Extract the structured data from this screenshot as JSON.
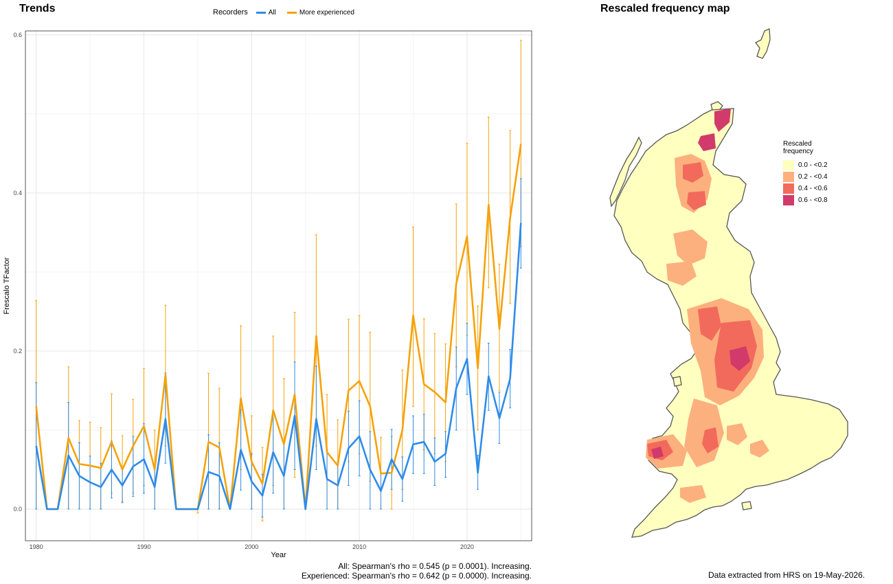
{
  "trends_title": "Trends",
  "map_title": "Rescaled frequency map",
  "legend": {
    "title": "Recorders",
    "items": [
      {
        "label": "All",
        "color": "#2e8be8"
      },
      {
        "label": "More experienced",
        "color": "#f5a20a"
      }
    ]
  },
  "stats": {
    "line1": "All: Spearman's rho = 0.545 (p = 0.0001). Increasing.",
    "line2": "Experienced: Spearman's rho = 0.642 (p = 0.0000). Increasing."
  },
  "footer": "Data extracted from HRS on 19-May-2026.",
  "map_legend": {
    "title": "Rescaled frequency",
    "items": [
      {
        "label": "0.0 - <0.2",
        "color": "#ffffc0"
      },
      {
        "label": "0.2 - <0.4",
        "color": "#fcb07e"
      },
      {
        "label": "0.4 - <0.6",
        "color": "#f26a5b"
      },
      {
        "label": "0.6 - <0.8",
        "color": "#d13a6a"
      }
    ]
  },
  "chart_data": {
    "type": "line",
    "xlabel": "Year",
    "ylabel": "Frescalo TFactor",
    "xlim": [
      1979,
      2026
    ],
    "ylim": [
      -0.04,
      0.605
    ],
    "xticks": [
      1980,
      1990,
      2000,
      2010,
      2020
    ],
    "yticks": [
      0.0,
      0.2,
      0.4,
      0.6
    ],
    "grid": true,
    "legend_position": "top",
    "x": [
      1980,
      1981,
      1982,
      1983,
      1984,
      1985,
      1986,
      1987,
      1988,
      1989,
      1990,
      1991,
      1992,
      1993,
      1994,
      1995,
      1996,
      1997,
      1998,
      1999,
      2000,
      2001,
      2002,
      2003,
      2004,
      2005,
      2006,
      2007,
      2008,
      2009,
      2010,
      2011,
      2012,
      2013,
      2014,
      2015,
      2016,
      2017,
      2018,
      2019,
      2020,
      2021,
      2022,
      2023,
      2024,
      2025
    ],
    "series": [
      {
        "name": "All",
        "color": "#2e8be8",
        "values": [
          0.08,
          0.0,
          0.0,
          0.068,
          0.042,
          0.034,
          0.028,
          0.05,
          0.03,
          0.054,
          0.063,
          0.028,
          0.114,
          0.0,
          0.0,
          0.0,
          0.047,
          0.042,
          0.0,
          0.075,
          0.035,
          0.017,
          0.072,
          0.042,
          0.118,
          0.0,
          0.114,
          0.038,
          0.03,
          0.077,
          0.092,
          0.05,
          0.023,
          0.063,
          0.038,
          0.082,
          0.085,
          0.06,
          0.07,
          0.153,
          0.19,
          0.046,
          0.168,
          0.115,
          0.165,
          0.362
        ],
        "lower": [
          0.0,
          0.0,
          0.0,
          0.0,
          0.0,
          0.0,
          0.0,
          0.014,
          0.008,
          0.016,
          0.02,
          0.0,
          0.058,
          0.0,
          0.0,
          0.0,
          0.0,
          0.0,
          0.0,
          0.024,
          0.0,
          -0.01,
          0.02,
          0.0,
          0.05,
          0.0,
          0.05,
          0.0,
          0.0,
          0.03,
          0.042,
          0.0,
          0.0,
          0.025,
          0.01,
          0.045,
          0.045,
          0.03,
          0.04,
          0.1,
          0.145,
          0.025,
          0.125,
          0.083,
          0.128,
          0.305
        ],
        "upper": [
          0.16,
          0.0,
          0.0,
          0.135,
          0.084,
          0.067,
          0.058,
          0.086,
          0.052,
          0.092,
          0.108,
          0.055,
          0.172,
          0.0,
          0.0,
          0.0,
          0.094,
          0.084,
          0.0,
          0.126,
          0.07,
          0.044,
          0.124,
          0.084,
          0.186,
          0.0,
          0.181,
          0.075,
          0.06,
          0.124,
          0.137,
          0.098,
          0.046,
          0.101,
          0.066,
          0.118,
          0.12,
          0.09,
          0.098,
          0.205,
          0.235,
          0.068,
          0.21,
          0.148,
          0.202,
          0.418
        ]
      },
      {
        "name": "More experienced",
        "color": "#f5a20a",
        "values": [
          0.13,
          0.0,
          0.0,
          0.09,
          0.057,
          0.055,
          0.052,
          0.085,
          0.05,
          0.08,
          0.105,
          0.05,
          0.17,
          0.0,
          0.0,
          0.0,
          0.085,
          0.078,
          0.0,
          0.14,
          0.06,
          0.032,
          0.125,
          0.082,
          0.145,
          0.0,
          0.219,
          0.072,
          0.055,
          0.15,
          0.162,
          0.13,
          0.045,
          0.046,
          0.1,
          0.245,
          0.158,
          0.148,
          0.135,
          0.285,
          0.345,
          0.178,
          0.385,
          0.228,
          0.368,
          0.462
        ],
        "lower": [
          0.0,
          0.0,
          0.0,
          0.0,
          0.0,
          0.0,
          0.0,
          0.02,
          0.01,
          0.02,
          0.03,
          0.0,
          0.08,
          0.0,
          0.0,
          -0.005,
          0.0,
          0.0,
          0.0,
          0.05,
          0.0,
          -0.015,
          0.03,
          0.0,
          0.04,
          0.0,
          0.08,
          0.0,
          0.0,
          0.06,
          0.07,
          0.035,
          0.0,
          0.0,
          0.025,
          0.13,
          0.075,
          0.07,
          0.06,
          0.18,
          0.22,
          0.1,
          0.28,
          0.15,
          0.26,
          0.332
        ],
        "upper": [
          0.264,
          0.0,
          0.0,
          0.18,
          0.112,
          0.11,
          0.103,
          0.146,
          0.093,
          0.139,
          0.178,
          0.1,
          0.258,
          0.0,
          0.0,
          0.0,
          0.172,
          0.153,
          0.0,
          0.232,
          0.118,
          0.078,
          0.219,
          0.165,
          0.249,
          0.0,
          0.347,
          0.145,
          0.113,
          0.24,
          0.245,
          0.224,
          0.091,
          0.092,
          0.176,
          0.357,
          0.241,
          0.222,
          0.209,
          0.386,
          0.463,
          0.257,
          0.496,
          0.31,
          0.479,
          0.593
        ]
      }
    ]
  }
}
